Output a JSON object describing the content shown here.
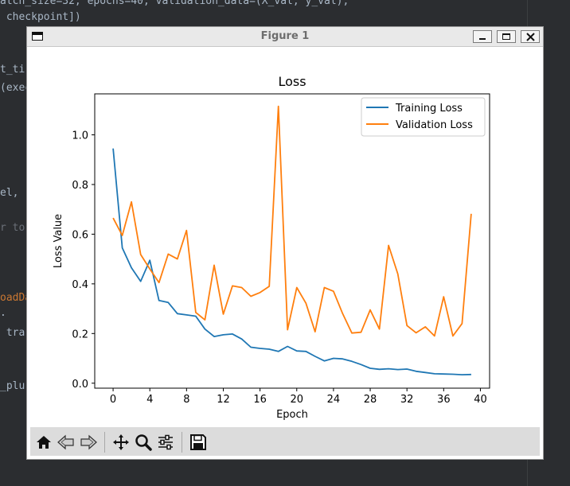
{
  "editor": {
    "lines": [
      {
        "text": "atch_size=32, epochs=40, validation_data=(X_val, y_val),",
        "color": "#a9b7c6"
      },
      {
        "text": " checkpoint])",
        "color": "#a9b7c6"
      },
      {
        "text": "t_ti",
        "color": "#a9b7c6"
      },
      {
        "text": "(exec",
        "color": "#a9b7c6"
      },
      {
        "text": "el, ",
        "color": "#a9b7c6"
      },
      {
        "text": "r to",
        "color": "#6b7078"
      },
      {
        "text": "oadDa",
        "color": "#cc7832"
      },
      {
        "text": ".",
        "color": "#a9b7c6"
      },
      {
        "text": " tra",
        "color": "#a9b7c6"
      },
      {
        "text": "_plu",
        "color": "#a9b7c6"
      }
    ]
  },
  "window": {
    "title": "Figure 1"
  },
  "toolbar": {
    "buttons": [
      "home-icon",
      "back-arrow-icon",
      "forward-arrow-icon",
      "pan-move-icon",
      "zoom-magnifier-icon",
      "subplots-config-icon",
      "save-disk-icon"
    ]
  },
  "chart_data": {
    "type": "line",
    "title": "Loss",
    "xlabel": "Epoch",
    "ylabel": "Loss Value",
    "xlim": [
      -2,
      41
    ],
    "ylim": [
      -0.02,
      1.165
    ],
    "xticks": [
      0,
      4,
      8,
      12,
      16,
      20,
      24,
      28,
      32,
      36,
      40
    ],
    "yticks": [
      0.0,
      0.2,
      0.4,
      0.6,
      0.8,
      1.0
    ],
    "ytick_labels": [
      "0.0",
      "0.2",
      "0.4",
      "0.6",
      "0.8",
      "1.0"
    ],
    "legend_position": "top-right",
    "grid": false,
    "x": [
      0,
      1,
      2,
      3,
      4,
      5,
      6,
      7,
      8,
      9,
      10,
      11,
      12,
      13,
      14,
      15,
      16,
      17,
      18,
      19,
      20,
      21,
      22,
      23,
      24,
      25,
      26,
      27,
      28,
      29,
      30,
      31,
      32,
      33,
      34,
      35,
      36,
      37,
      38,
      39
    ],
    "series": [
      {
        "name": "Training Loss",
        "color": "#1f77b4",
        "values": [
          0.945,
          0.545,
          0.465,
          0.41,
          0.495,
          0.333,
          0.325,
          0.28,
          0.275,
          0.27,
          0.218,
          0.188,
          0.195,
          0.198,
          0.178,
          0.145,
          0.14,
          0.137,
          0.128,
          0.148,
          0.13,
          0.128,
          0.108,
          0.09,
          0.1,
          0.098,
          0.088,
          0.075,
          0.06,
          0.056,
          0.058,
          0.055,
          0.057,
          0.048,
          0.043,
          0.038,
          0.037,
          0.036,
          0.034,
          0.035
        ]
      },
      {
        "name": "Validation Loss",
        "color": "#ff7f0e",
        "values": [
          0.665,
          0.595,
          0.73,
          0.518,
          0.46,
          0.405,
          0.52,
          0.5,
          0.615,
          0.285,
          0.255,
          0.475,
          0.278,
          0.392,
          0.385,
          0.35,
          0.365,
          0.39,
          1.115,
          0.215,
          0.385,
          0.322,
          0.207,
          0.385,
          0.37,
          0.28,
          0.202,
          0.205,
          0.295,
          0.218,
          0.555,
          0.44,
          0.232,
          0.203,
          0.227,
          0.19,
          0.348,
          0.19,
          0.24,
          0.682
        ]
      }
    ]
  }
}
